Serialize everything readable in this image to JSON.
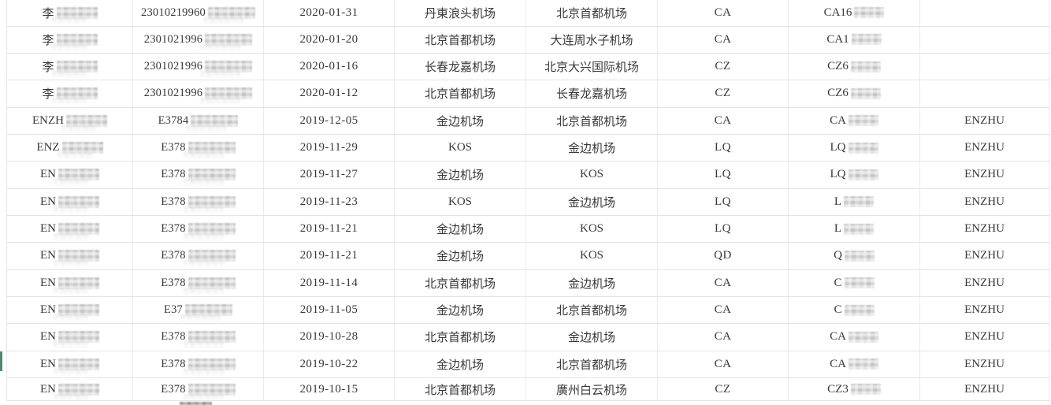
{
  "colors": {
    "row_border": "#e3e3e3",
    "column_border": "#ebebeb",
    "text": "#383838",
    "green_edge_marker": "#4d8a6d"
  },
  "table": {
    "rows": [
      {
        "name_prefix": "李",
        "id_prefix": "23010219960",
        "date": "2020-01-31",
        "departure": "丹東浪头机场",
        "arrival": "北京首都机场",
        "airline": "CA",
        "flight_prefix": "CA16",
        "tag": ""
      },
      {
        "name_prefix": "李",
        "id_prefix": "2301021996",
        "date": "2020-01-20",
        "departure": "北京首都机场",
        "arrival": "大连周水子机场",
        "airline": "CA",
        "flight_prefix": "CA1",
        "tag": ""
      },
      {
        "name_prefix": "李",
        "id_prefix": "2301021996",
        "date": "2020-01-16",
        "departure": "长春龙嘉机场",
        "arrival": "北京大兴国际机场",
        "airline": "CZ",
        "flight_prefix": "CZ6",
        "tag": ""
      },
      {
        "name_prefix": "李",
        "id_prefix": "2301021996",
        "date": "2020-01-12",
        "departure": "北京首都机场",
        "arrival": "长春龙嘉机场",
        "airline": "CZ",
        "flight_prefix": "CZ6",
        "tag": ""
      },
      {
        "name_prefix": "ENZH",
        "id_prefix": "E3784",
        "date": "2019-12-05",
        "departure": "金边机场",
        "arrival": "北京首都机场",
        "airline": "CA",
        "flight_prefix": "CA",
        "tag": "ENZHU"
      },
      {
        "name_prefix": "ENZ",
        "id_prefix": "E378",
        "date": "2019-11-29",
        "departure": "KOS",
        "arrival": "金边机场",
        "airline": "LQ",
        "flight_prefix": "LQ",
        "tag": "ENZHU"
      },
      {
        "name_prefix": "EN",
        "id_prefix": "E378",
        "date": "2019-11-27",
        "departure": "金边机场",
        "arrival": "KOS",
        "airline": "LQ",
        "flight_prefix": "LQ",
        "tag": "ENZHU"
      },
      {
        "name_prefix": "EN",
        "id_prefix": "E378",
        "date": "2019-11-23",
        "departure": "KOS",
        "arrival": "金边机场",
        "airline": "LQ",
        "flight_prefix": "L",
        "tag": "ENZHU"
      },
      {
        "name_prefix": "EN",
        "id_prefix": "E378",
        "date": "2019-11-21",
        "departure": "金边机场",
        "arrival": "KOS",
        "airline": "LQ",
        "flight_prefix": "L",
        "tag": "ENZHU"
      },
      {
        "name_prefix": "EN",
        "id_prefix": "E378",
        "date": "2019-11-21",
        "departure": "金边机场",
        "arrival": "KOS",
        "airline": "QD",
        "flight_prefix": "Q",
        "tag": "ENZHU"
      },
      {
        "name_prefix": "EN",
        "id_prefix": "E378",
        "date": "2019-11-14",
        "departure": "北京首都机场",
        "arrival": "金边机场",
        "airline": "CA",
        "flight_prefix": "C",
        "tag": "ENZHU"
      },
      {
        "name_prefix": "EN",
        "id_prefix": "E37",
        "date": "2019-11-05",
        "departure": "金边机场",
        "arrival": "北京首都机场",
        "airline": "CA",
        "flight_prefix": "C",
        "tag": "ENZHU"
      },
      {
        "name_prefix": "EN",
        "id_prefix": "E378",
        "date": "2019-10-28",
        "departure": "北京首都机场",
        "arrival": "金边机场",
        "airline": "CA",
        "flight_prefix": "CA",
        "tag": "ENZHU"
      },
      {
        "name_prefix": "EN",
        "id_prefix": "E378",
        "date": "2019-10-22",
        "departure": "金边机场",
        "arrival": "北京首都机场",
        "airline": "CA",
        "flight_prefix": "CA",
        "tag": "ENZHU"
      },
      {
        "name_prefix": "EN",
        "id_prefix": "E378",
        "date": "2019-10-15",
        "departure": "北京首都机场",
        "arrival": "廣州白云机场",
        "airline": "CZ",
        "flight_prefix": "CZ3",
        "tag": "ENZHU"
      }
    ]
  }
}
